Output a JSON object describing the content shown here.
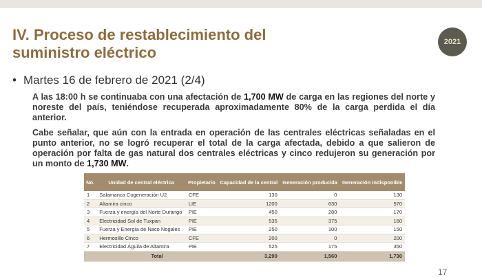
{
  "header": {
    "title_line1": "IV. Proceso de restablecimiento del",
    "title_line2": "suministro eléctrico",
    "logo_text": "2021"
  },
  "bullet": "Martes 16 de febrero de 2021 (2/4)",
  "paragraphs": [
    [
      "A las 18:00 h se continuaba con una afectación de ",
      "1,700 MW",
      " de carga en las regiones del norte y noreste del país, teniéndose recuperada aproximadamente 80% de la carga perdida el día anterior."
    ],
    [
      "Cabe señalar, que aún con la entrada en operación de las centrales eléctricas señaladas en el punto anterior, no se logró recuperar el total de la carga afectada, debido a que salieron de operación por falta de gas natural dos centrales eléctricas y cinco redujeron su generación por un monto de ",
      "1,730 MW",
      "."
    ]
  ],
  "table": {
    "headers": [
      "No.",
      "Unidad de central eléctrica",
      "Propietario",
      "Capacidad de la central",
      "Generación producida",
      "Generación indisponible"
    ],
    "rows": [
      [
        "1",
        "Salamanca Cogeneración U2",
        "CFE",
        "130",
        "0",
        "130"
      ],
      [
        "2",
        "Altamira cinco",
        "LIE",
        "1200",
        "630",
        "570"
      ],
      [
        "3",
        "Fuerza y energía del Norte Durango",
        "PIE",
        "450",
        "280",
        "170"
      ],
      [
        "4",
        "Electricidad Sol de Tuxpan",
        "PIE",
        "535",
        "375",
        "160"
      ],
      [
        "5",
        "Fuerza y Energía de Naco Nogales",
        "PIE",
        "250",
        "100",
        "150"
      ],
      [
        "6",
        "Hermosillo Cinco",
        "CFE",
        "200",
        "0",
        "200"
      ],
      [
        "7",
        "Electricidad Águila de Altamira",
        "PIE",
        "525",
        "175",
        "350"
      ]
    ],
    "total": [
      "Total",
      "3,290",
      "1,560",
      "1,730"
    ]
  },
  "page_number": "17"
}
